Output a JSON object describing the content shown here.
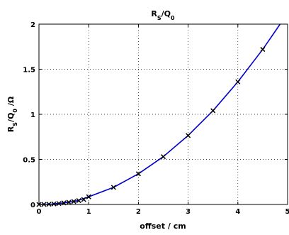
{
  "chart_data": {
    "type": "line",
    "title": "R_S/Q_0",
    "xlabel": "offset / cm",
    "ylabel": "R_S/Q_0 /Ω",
    "xlim": [
      0,
      5
    ],
    "ylim": [
      0,
      2
    ],
    "xticks": [
      0,
      1,
      2,
      3,
      4,
      5
    ],
    "yticks": [
      0,
      0.5,
      1,
      1.5,
      2
    ],
    "xtick_labels": [
      "0",
      "1",
      "2",
      "3",
      "4",
      "5"
    ],
    "ytick_labels": [
      "0",
      "0.5",
      "1",
      "1.5",
      "2"
    ],
    "grid": true,
    "series": [
      {
        "kind": "line",
        "color": "#0000cc",
        "x": [
          0,
          0.25,
          0.5,
          0.75,
          1,
          1.5,
          2,
          2.5,
          3,
          3.5,
          4,
          4.5,
          4.85
        ],
        "y": [
          0,
          0.004,
          0.017,
          0.038,
          0.085,
          0.19,
          0.34,
          0.53,
          0.765,
          1.04,
          1.36,
          1.72,
          2.0
        ]
      },
      {
        "kind": "markers",
        "marker": "x",
        "color": "#000000",
        "x": [
          0,
          0.1,
          0.2,
          0.3,
          0.4,
          0.5,
          0.6,
          0.7,
          0.8,
          0.9,
          1,
          1.5,
          2,
          2.5,
          3,
          3.5,
          4,
          4.5
        ],
        "y": [
          0,
          0.001,
          0.003,
          0.006,
          0.011,
          0.017,
          0.024,
          0.033,
          0.043,
          0.055,
          0.085,
          0.19,
          0.34,
          0.53,
          0.765,
          1.04,
          1.36,
          1.72
        ]
      }
    ]
  }
}
